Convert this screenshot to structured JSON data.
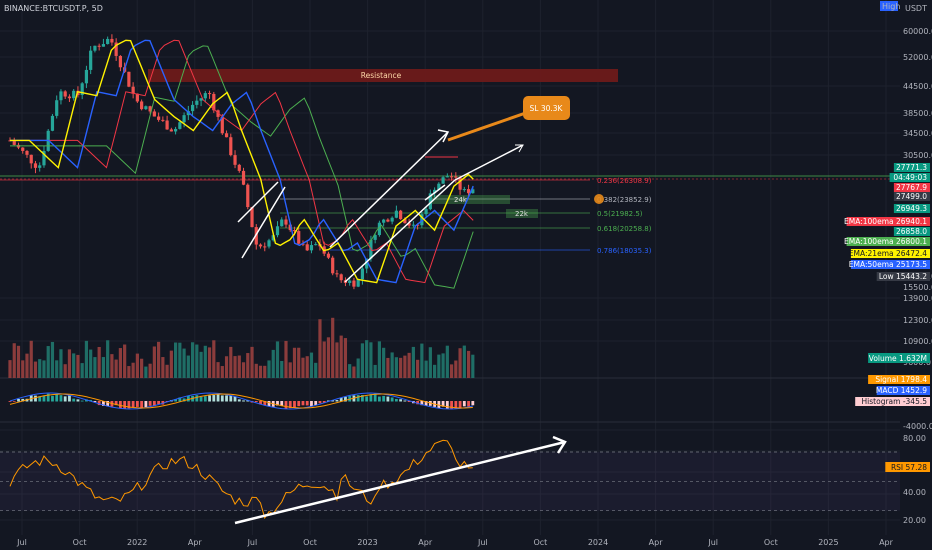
{
  "symbol": "BINANCE:BTCUSDT.P, 5D",
  "currency": "USDT",
  "high_label": "High",
  "price_axis": [
    "60000.0",
    "52000.0",
    "44500.0",
    "38500.0",
    "34500.0",
    "30500.0",
    "17500.0",
    "15500.0",
    "13900.0"
  ],
  "volume_axis": [
    "12300.0",
    "10900.0",
    "9600.0"
  ],
  "macd_axis": [
    "-4000.0"
  ],
  "rsi_axis": [
    "80.00",
    "60.00",
    "40.00",
    "20.00"
  ],
  "time_axis": [
    "Jul",
    "Oct",
    "2022",
    "Apr",
    "Jul",
    "Oct",
    "2023",
    "Apr",
    "Jul",
    "Oct",
    "2024",
    "Apr",
    "Jul",
    "Oct",
    "2025",
    "Apr"
  ],
  "resistance_label": "Resistance",
  "sl_label": "SL 30.3K",
  "fib_levels": [
    {
      "label": "0.236(26308.9)",
      "color": "#f23645"
    },
    {
      "label": "0.382(23852.9)",
      "color": "#b2b5be"
    },
    {
      "label": "0.5(21982.5)",
      "color": "#4caf50"
    },
    {
      "label": "0.618(20258.8)",
      "color": "#4caf50"
    },
    {
      "label": "0.786(18035.3)",
      "color": "#2962ff"
    }
  ],
  "targets": [
    "24k",
    "22k"
  ],
  "price_tags": [
    {
      "label": "27771.3",
      "bg": "#089981",
      "fg": "#ffffff"
    },
    {
      "label": "04:49:03",
      "bg": "#089981",
      "fg": "#ffffff"
    },
    {
      "label": "27767.9",
      "bg": "#f23645",
      "fg": "#ffffff"
    },
    {
      "label": "27499.0",
      "bg": "#363a45",
      "fg": "#ffffff"
    },
    {
      "label": "26949.3",
      "bg": "#089981",
      "fg": "#ffffff"
    },
    {
      "label": "EMA:100ema 26940.1",
      "bg": "#f23645",
      "fg": "#ffffff"
    },
    {
      "label": "26858.0",
      "bg": "#089981",
      "fg": "#ffffff"
    },
    {
      "label": "EMA:100ema 26800.1",
      "bg": "#4caf50",
      "fg": "#ffffff"
    },
    {
      "label": "EMA:21ema 26472.4",
      "bg": "#fff200",
      "fg": "#131722"
    },
    {
      "label": "EMA:50ema 25173.5",
      "bg": "#2962ff",
      "fg": "#ffffff"
    },
    {
      "label": "Low 15443.2",
      "bg": "#363a45",
      "fg": "#ffffff"
    }
  ],
  "volume_tag": "Volume 1.632M",
  "macd_tags": [
    {
      "label": "Signal 1798.4",
      "bg": "#ff9800",
      "fg": "#ffffff"
    },
    {
      "label": "MACD 1452.9",
      "bg": "#2962ff",
      "fg": "#ffffff"
    },
    {
      "label": "Histogram -345.5",
      "bg": "#ffcdd2",
      "fg": "#131722"
    }
  ],
  "rsi_tag": "RSI 57.28",
  "colors": {
    "bg": "#131722",
    "up": "#26a69a",
    "down": "#ef5350",
    "ema21": "#fff200",
    "ema50": "#2962ff",
    "ema100": "#f23645",
    "ema200": "#4caf50",
    "rsi": "#ff9800",
    "resistance": "#6d1a1a",
    "sl": "#e8891a"
  },
  "chart_data": {
    "type": "candlestick",
    "timeframe": "5D",
    "price_range": [
      13900,
      72000
    ],
    "price_series_approx": {
      "dates": [
        "2021-06",
        "2021-08",
        "2021-10",
        "2021-11",
        "2022-01",
        "2022-03",
        "2022-04",
        "2022-05",
        "2022-06",
        "2022-08",
        "2022-09",
        "2022-11",
        "2022-12",
        "2023-01",
        "2023-02",
        "2023-03",
        "2023-04",
        "2023-05"
      ],
      "close": [
        35000,
        45000,
        58000,
        63000,
        42000,
        44000,
        45000,
        30000,
        20000,
        23500,
        19500,
        16500,
        16800,
        23000,
        24000,
        28000,
        29500,
        27771
      ]
    },
    "levels": [
      {
        "name": "Resistance",
        "price": 48000
      },
      {
        "name": "SL 30.3K",
        "price": 30300
      },
      {
        "name": "24k",
        "price": 24000
      },
      {
        "name": "22k",
        "price": 22000
      }
    ],
    "indicators": [
      "EMA 21",
      "EMA 50",
      "EMA 100",
      "EMA 200",
      "Volume",
      "MACD",
      "RSI"
    ],
    "rsi_range": [
      20,
      80
    ],
    "last_price": 27771.3
  }
}
